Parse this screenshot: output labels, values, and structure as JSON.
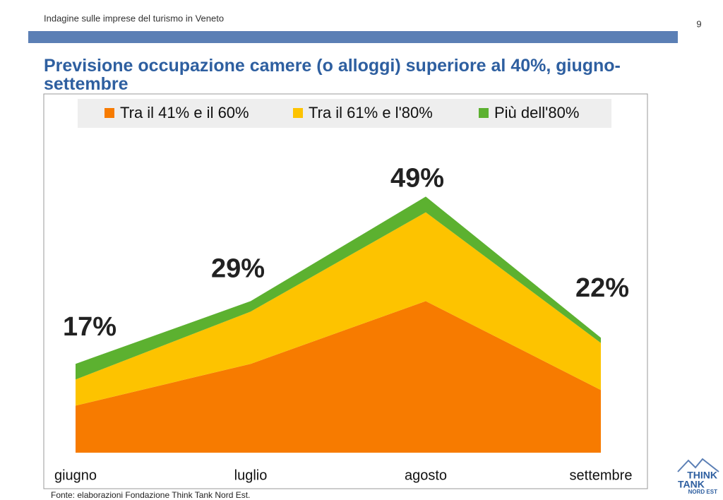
{
  "header": "Indagine sulle imprese del turismo in Veneto",
  "page_number": "9",
  "source": "Fonte: elaborazioni Fondazione Think Tank Nord Est.",
  "logo": [
    "THINK",
    "TANK",
    "NORD EST"
  ],
  "chart_data": {
    "type": "stacked_area",
    "title": "Previsione occupazione camere (o alloggi) superiore al 40%, giugno-settembre",
    "categories": [
      "giugno",
      "luglio",
      "agosto",
      "settembre"
    ],
    "series": [
      {
        "name": "Tra il 41% e il 60%",
        "color": "#f77b00",
        "values": [
          9,
          17,
          29,
          12
        ]
      },
      {
        "name": "Tra il 61% e l'80%",
        "color": "#fdc300",
        "values": [
          5,
          10,
          17,
          9
        ]
      },
      {
        "name": "Più dell'80%",
        "color": "#5cb130",
        "values": [
          3,
          2,
          3,
          1
        ]
      }
    ],
    "total_labels": [
      "17%",
      "29%",
      "49%",
      "22%"
    ],
    "ylim": [
      0,
      60
    ],
    "legend": "top"
  }
}
